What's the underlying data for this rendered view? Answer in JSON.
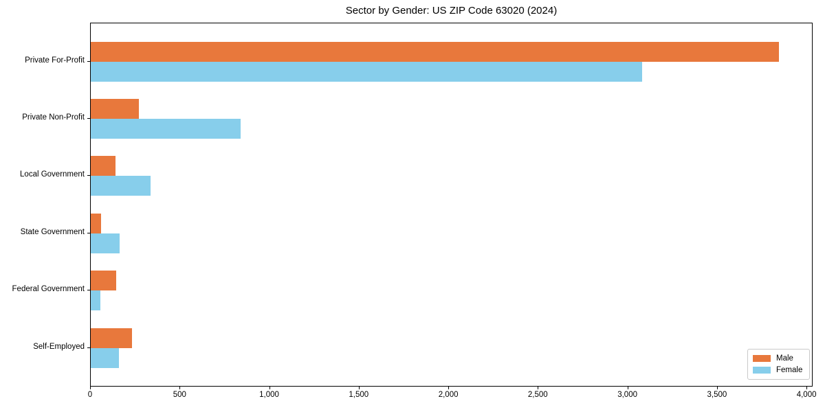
{
  "title": "Sector by Gender: US ZIP Code 63020 (2024)",
  "colors": {
    "male": "#e8783c",
    "female": "#87ceeb",
    "spine": "#000000",
    "legend_border": "#c9c9c9",
    "background": "#ffffff"
  },
  "legend": {
    "position": "lower right",
    "items": [
      {
        "label": "Male",
        "color": "#e8783c"
      },
      {
        "label": "Female",
        "color": "#87ceeb"
      }
    ]
  },
  "chart_data": {
    "type": "bar",
    "orientation": "horizontal",
    "title": "Sector by Gender: US ZIP Code 63020 (2024)",
    "xlabel": "",
    "ylabel": "",
    "categories": [
      "Private For-Profit",
      "Private Non-Profit",
      "Local Government",
      "State Government",
      "Federal Government",
      "Self-Employed"
    ],
    "series": [
      {
        "name": "Male",
        "color": "#e8783c",
        "values": [
          3840,
          270,
          137,
          56,
          141,
          230
        ]
      },
      {
        "name": "Female",
        "color": "#87ceeb",
        "values": [
          3080,
          835,
          333,
          162,
          54,
          159
        ]
      }
    ],
    "xlim": [
      0,
      4034
    ],
    "xticks": [
      0,
      500,
      1000,
      1500,
      2000,
      2500,
      3000,
      3500,
      4000
    ],
    "xtick_labels": [
      "0",
      "500",
      "1,000",
      "1,500",
      "2,000",
      "2,500",
      "3,000",
      "3,500",
      "4,000"
    ],
    "grid": false,
    "legend_position": "lower right"
  }
}
